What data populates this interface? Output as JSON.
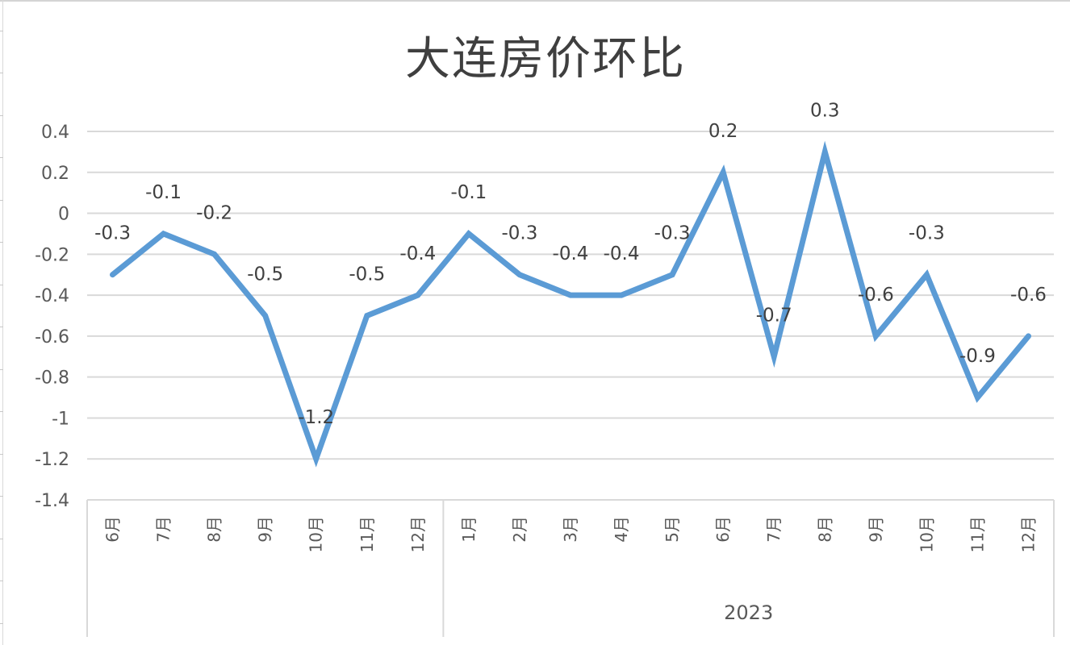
{
  "chart_data": {
    "type": "line",
    "title": "大连房价环比",
    "xlabel": "",
    "ylabel": "",
    "ylim": [
      -1.4,
      0.4
    ],
    "yticks": [
      0.4,
      0.2,
      0,
      -0.2,
      -0.4,
      -0.6,
      -0.8,
      -1,
      -1.2,
      -1.4
    ],
    "ytick_labels": [
      "0.4",
      "0.2",
      "0",
      "-0.2",
      "-0.4",
      "-0.6",
      "-0.8",
      "-1",
      "-1.2",
      "-1.4"
    ],
    "grid": true,
    "legend": null,
    "categories": [
      "6月",
      "7月",
      "8月",
      "9月",
      "10月",
      "11月",
      "12月",
      "1月",
      "2月",
      "3月",
      "4月",
      "5月",
      "6月",
      "7月",
      "8月",
      "9月",
      "10月",
      "11月",
      "12月"
    ],
    "category_groups": [
      {
        "label": "",
        "start": 0,
        "end": 6
      },
      {
        "label": "2023",
        "start": 7,
        "end": 18
      }
    ],
    "series": [
      {
        "name": "大连房价环比",
        "color": "#5b9bd5",
        "values": [
          -0.3,
          -0.1,
          -0.2,
          -0.5,
          -1.2,
          -0.5,
          -0.4,
          -0.1,
          -0.3,
          -0.4,
          -0.4,
          -0.3,
          0.2,
          -0.7,
          0.3,
          -0.6,
          -0.3,
          -0.9,
          -0.6
        ],
        "data_labels": [
          "-0.3",
          "-0.1",
          "-0.2",
          "-0.5",
          "-1.2",
          "-0.5",
          "-0.4",
          "-0.1",
          "-0.3",
          "-0.4",
          "-0.4",
          "-0.3",
          "0.2",
          "-0.7",
          "0.3",
          "-0.6",
          "-0.3",
          "-0.9",
          "-0.6"
        ]
      }
    ]
  },
  "colors": {
    "line": "#5b9bd5",
    "grid": "#d9d9d9",
    "text": "#404040",
    "axis_text": "#595959"
  }
}
